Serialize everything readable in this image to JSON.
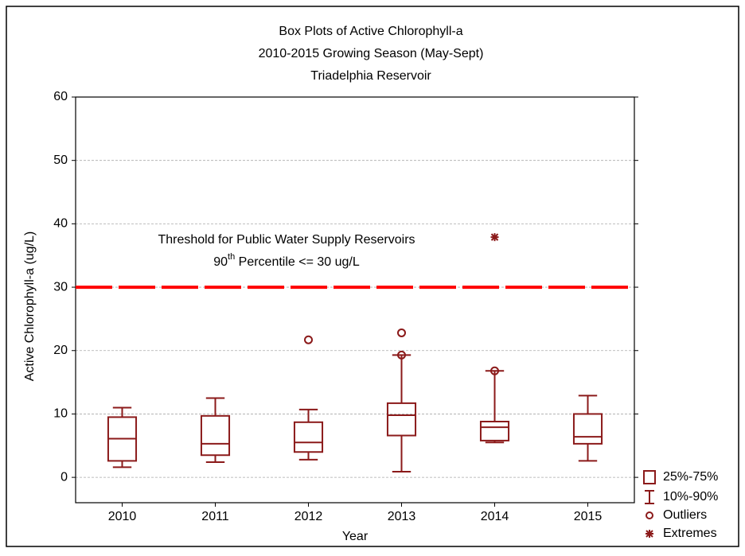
{
  "chart_data": {
    "type": "box",
    "title": [
      "Box Plots of Active Chlorophyll-a",
      "2010-2015 Growing Season (May-Sept)",
      "Triadelphia Reservoir"
    ],
    "x_label": "Year",
    "y_label": "Active Chlorophyll-a (ug/L)",
    "categories": [
      "2010",
      "2011",
      "2012",
      "2013",
      "2014",
      "2015"
    ],
    "color": "#8b1a1a",
    "boxes": [
      {
        "whisker_low": 1.6,
        "q1": 2.6,
        "median": 6.1,
        "q3": 9.5,
        "whisker_high": 11.0,
        "outliers": [],
        "extremes": []
      },
      {
        "whisker_low": 2.4,
        "q1": 3.5,
        "median": 5.3,
        "q3": 9.7,
        "whisker_high": 12.5,
        "outliers": [],
        "extremes": []
      },
      {
        "whisker_low": 2.8,
        "q1": 4.0,
        "median": 5.5,
        "q3": 8.7,
        "whisker_high": 10.7,
        "outliers": [
          21.7
        ],
        "extremes": []
      },
      {
        "whisker_low": 0.9,
        "q1": 6.6,
        "median": 9.8,
        "q3": 11.7,
        "whisker_high": 19.3,
        "outliers": [
          22.8,
          19.3
        ],
        "extremes": []
      },
      {
        "whisker_low": 5.5,
        "q1": 5.8,
        "median": 7.9,
        "q3": 8.8,
        "whisker_high": 16.8,
        "outliers": [
          16.8
        ],
        "extremes": [
          37.9
        ]
      },
      {
        "whisker_low": 2.6,
        "q1": 5.3,
        "median": 6.4,
        "q3": 10.0,
        "whisker_high": 12.9,
        "outliers": [],
        "extremes": []
      }
    ],
    "threshold": {
      "value": 30,
      "color": "#ff0000"
    },
    "annotation": {
      "line1": "Threshold for Public Water Supply Reservoirs",
      "line2_base": "90",
      "line2_sup": "th",
      "line2_rest": " Percentile <= 30 ug/L"
    },
    "legend": [
      "25%-75%",
      "10%-90%",
      "Outliers",
      "Extremes"
    ],
    "ylim": [
      -4,
      60
    ],
    "yticks": [
      0,
      10,
      20,
      30,
      40,
      50,
      60
    ],
    "grid": true
  }
}
